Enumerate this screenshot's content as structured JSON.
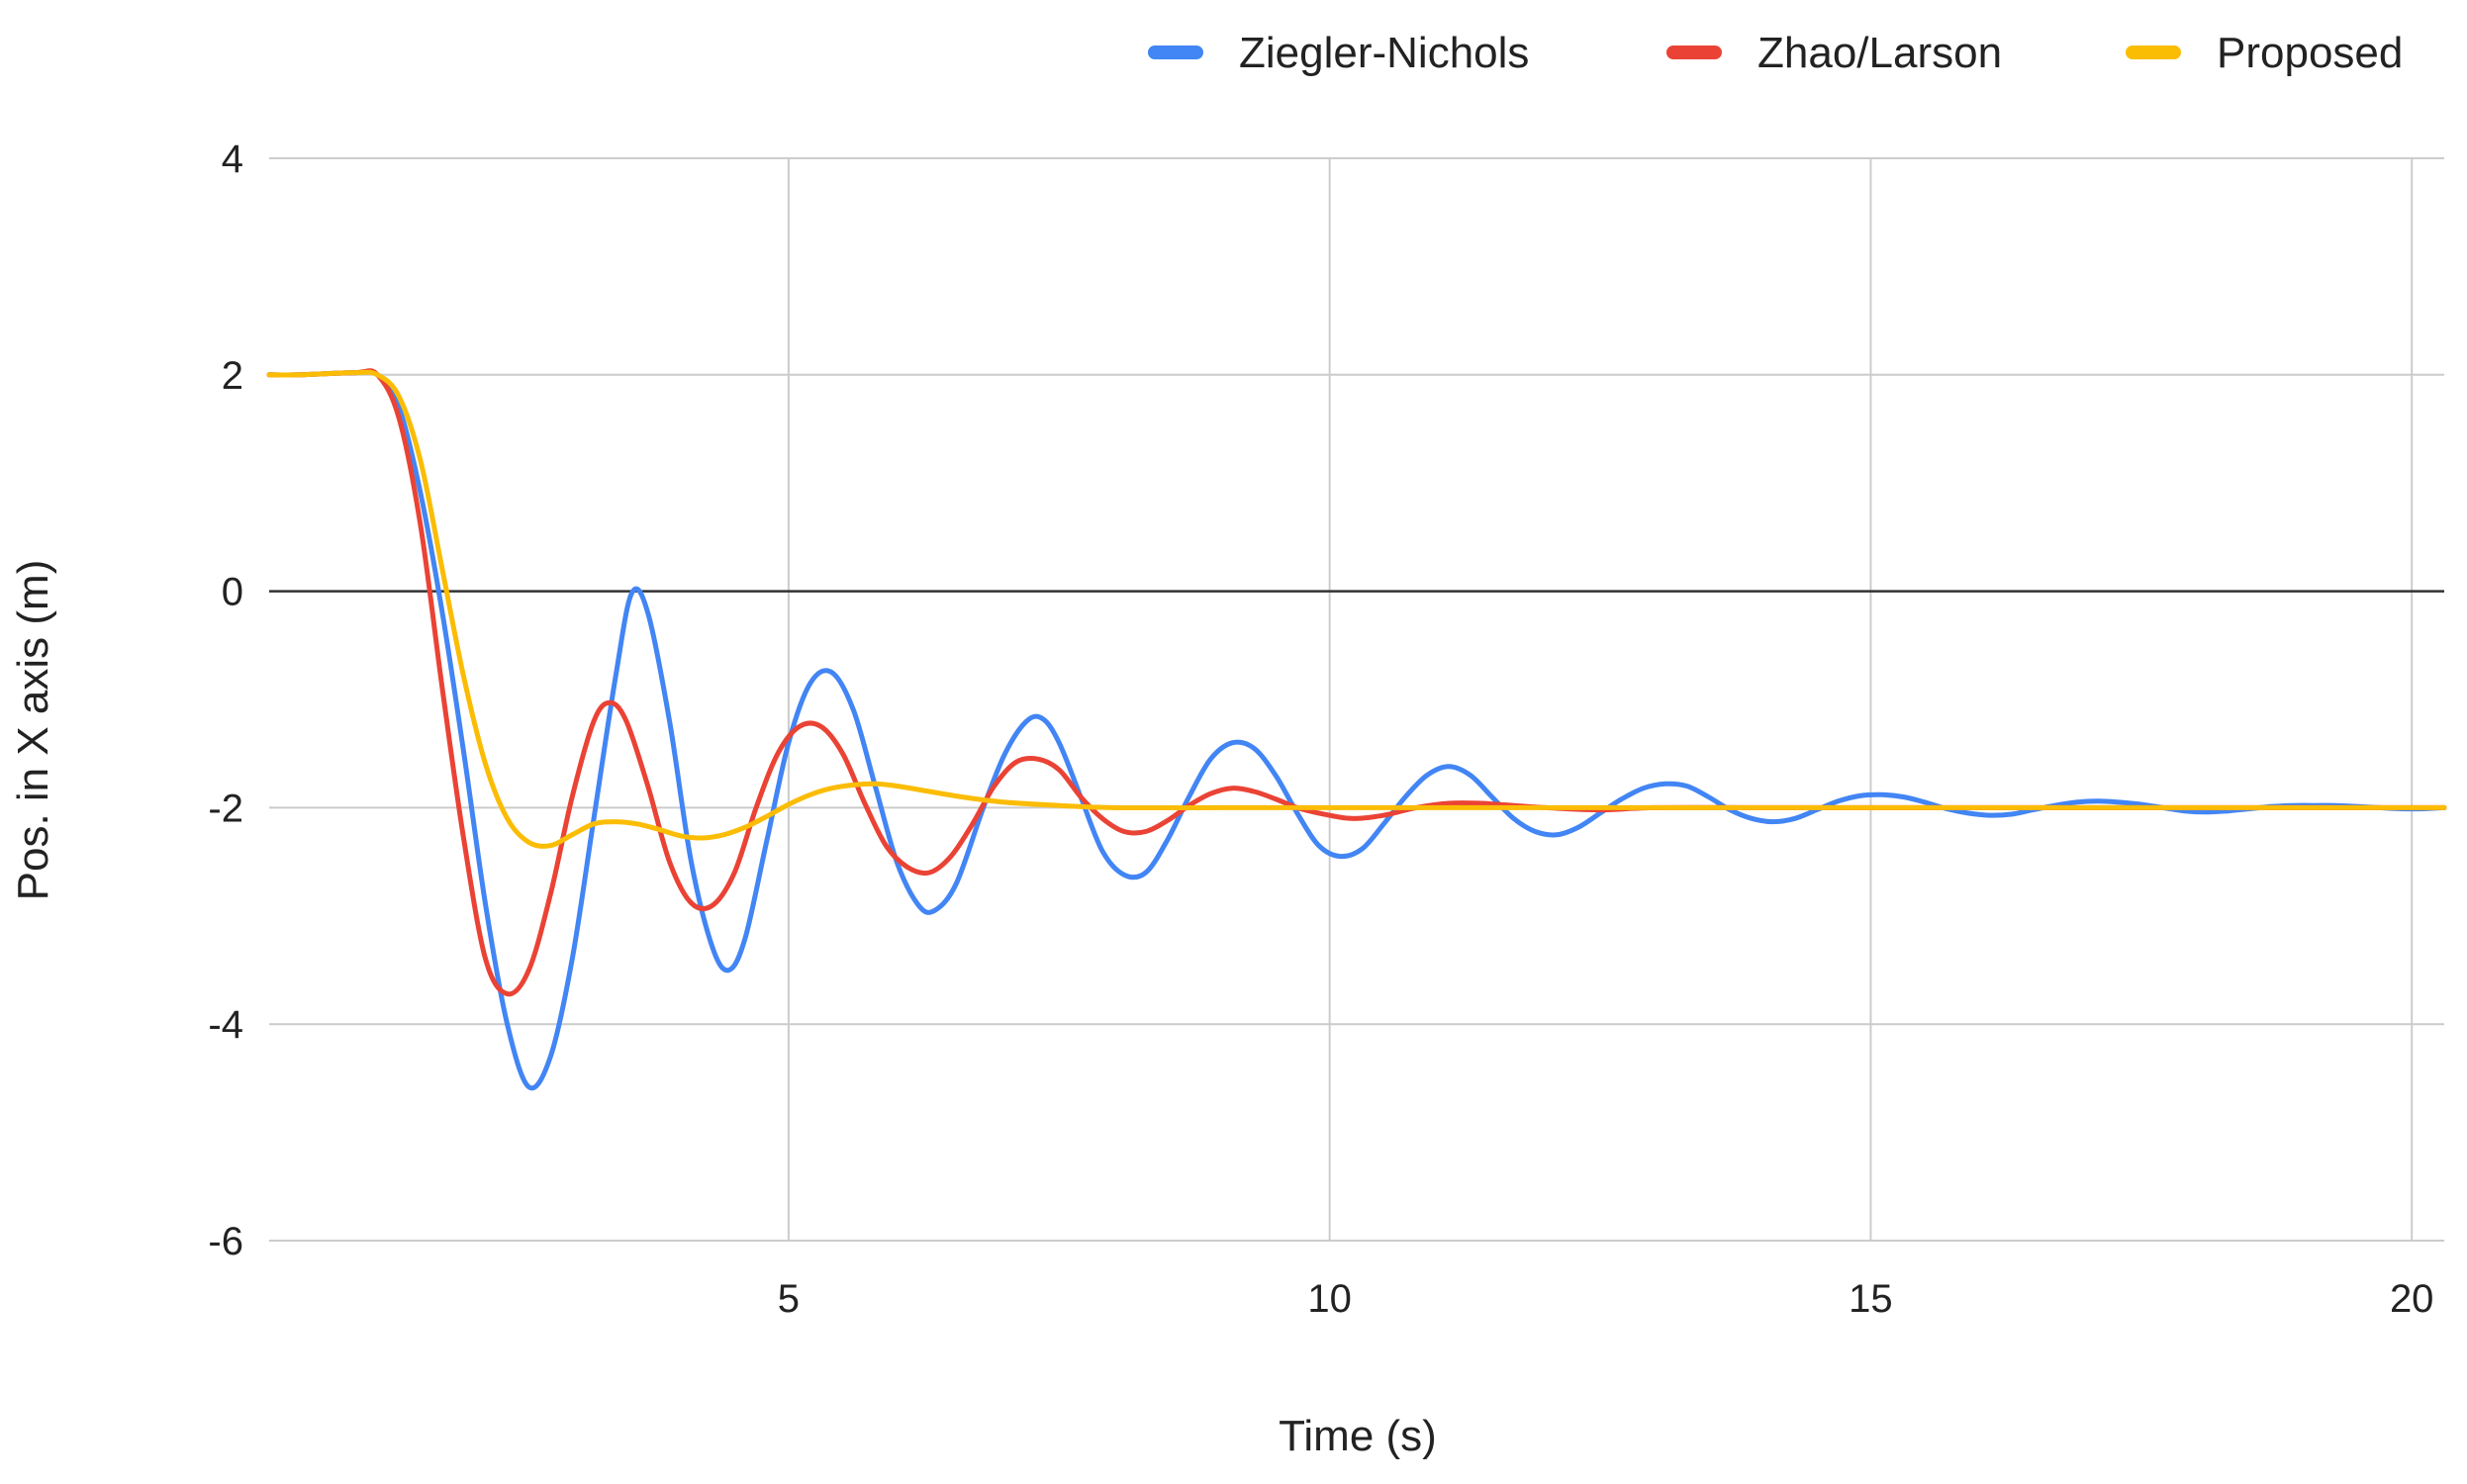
{
  "chart_data": {
    "type": "line",
    "title": "",
    "xlabel": "Time (s)",
    "ylabel": "Pos. in X axis (m)",
    "xlim": [
      0.2,
      20.3
    ],
    "ylim": [
      -6,
      4
    ],
    "x_ticks": [
      5,
      10,
      15,
      20
    ],
    "y_ticks": [
      4,
      2,
      0,
      -2,
      -4,
      -6
    ],
    "x_tick_labels": [
      "5",
      "10",
      "15",
      "20"
    ],
    "y_tick_labels": [
      "4",
      "2",
      "0",
      "-2",
      "-4",
      "-6"
    ],
    "grid": true,
    "zero_line": true,
    "legend_position": "top-right",
    "series": [
      {
        "name": "Ziegler-Nichols",
        "color": "#4285F4",
        "x": [
          0.2,
          0.5,
          1.0,
          1.2,
          1.4,
          1.6,
          1.8,
          2.0,
          2.2,
          2.4,
          2.6,
          2.8,
          3.0,
          3.2,
          3.4,
          3.55,
          3.7,
          3.9,
          4.1,
          4.3,
          4.45,
          4.6,
          4.8,
          5.0,
          5.2,
          5.4,
          5.6,
          5.8,
          6.0,
          6.2,
          6.35,
          6.55,
          6.8,
          7.0,
          7.2,
          7.35,
          7.5,
          7.7,
          7.9,
          8.1,
          8.3,
          8.5,
          8.7,
          8.9,
          9.1,
          9.3,
          9.5,
          9.7,
          9.9,
          10.1,
          10.3,
          10.5,
          10.7,
          10.9,
          11.1,
          11.3,
          11.5,
          11.7,
          11.9,
          12.1,
          12.3,
          12.5,
          12.7,
          12.9,
          13.1,
          13.3,
          13.5,
          13.7,
          13.9,
          14.1,
          14.3,
          14.5,
          14.7,
          14.9,
          15.1,
          15.3,
          15.5,
          15.7,
          15.9,
          16.1,
          16.3,
          16.5,
          16.7,
          16.9,
          17.1,
          17.3,
          17.5,
          17.7,
          17.9,
          18.1,
          18.3,
          18.5,
          18.7,
          18.9,
          19.1,
          19.3,
          19.5,
          19.7,
          19.9,
          20.1,
          20.3
        ],
        "values": [
          2.0,
          2.0,
          2.02,
          2.0,
          1.7,
          0.9,
          -0.2,
          -1.5,
          -2.9,
          -4.0,
          -4.58,
          -4.3,
          -3.4,
          -2.1,
          -0.8,
          -0.02,
          -0.2,
          -1.2,
          -2.5,
          -3.3,
          -3.5,
          -3.2,
          -2.3,
          -1.4,
          -0.85,
          -0.75,
          -1.1,
          -1.8,
          -2.5,
          -2.9,
          -2.95,
          -2.7,
          -2.0,
          -1.5,
          -1.2,
          -1.18,
          -1.4,
          -1.9,
          -2.4,
          -2.62,
          -2.6,
          -2.3,
          -1.9,
          -1.55,
          -1.4,
          -1.45,
          -1.7,
          -2.05,
          -2.35,
          -2.45,
          -2.38,
          -2.15,
          -1.9,
          -1.7,
          -1.62,
          -1.7,
          -1.9,
          -2.1,
          -2.22,
          -2.25,
          -2.18,
          -2.05,
          -1.92,
          -1.82,
          -1.78,
          -1.8,
          -1.9,
          -2.02,
          -2.1,
          -2.13,
          -2.1,
          -2.02,
          -1.94,
          -1.89,
          -1.88,
          -1.9,
          -1.95,
          -2.01,
          -2.05,
          -2.07,
          -2.06,
          -2.02,
          -1.98,
          -1.95,
          -1.94,
          -1.95,
          -1.97,
          -2.0,
          -2.03,
          -2.04,
          -2.03,
          -2.01,
          -1.99,
          -1.98,
          -1.98,
          -1.98,
          -1.99,
          -2.0,
          -2.01,
          -2.01,
          -2.0
        ]
      },
      {
        "name": "Zhao/Larson",
        "color": "#EA4335",
        "x": [
          0.2,
          0.5,
          1.0,
          1.2,
          1.4,
          1.6,
          1.8,
          2.0,
          2.2,
          2.4,
          2.6,
          2.8,
          3.0,
          3.2,
          3.35,
          3.5,
          3.7,
          3.9,
          4.1,
          4.3,
          4.5,
          4.7,
          4.9,
          5.1,
          5.3,
          5.5,
          5.7,
          5.9,
          6.1,
          6.3,
          6.5,
          6.7,
          6.9,
          7.1,
          7.3,
          7.5,
          7.7,
          7.9,
          8.1,
          8.3,
          8.5,
          8.7,
          8.9,
          9.1,
          9.3,
          9.5,
          9.7,
          9.9,
          10.2,
          10.5,
          10.8,
          11.1,
          11.4,
          11.7,
          12.0,
          12.5,
          13.0,
          14.0,
          15.0,
          16.0,
          17.0,
          18.0,
          19.0,
          20.3
        ],
        "values": [
          2.0,
          2.0,
          2.02,
          2.0,
          1.6,
          0.6,
          -0.9,
          -2.3,
          -3.4,
          -3.72,
          -3.5,
          -2.8,
          -1.9,
          -1.2,
          -1.03,
          -1.2,
          -1.8,
          -2.5,
          -2.88,
          -2.9,
          -2.6,
          -2.0,
          -1.5,
          -1.25,
          -1.25,
          -1.5,
          -1.95,
          -2.35,
          -2.55,
          -2.6,
          -2.45,
          -2.15,
          -1.8,
          -1.58,
          -1.55,
          -1.65,
          -1.9,
          -2.1,
          -2.22,
          -2.22,
          -2.12,
          -1.98,
          -1.87,
          -1.82,
          -1.85,
          -1.92,
          -2.0,
          -2.05,
          -2.1,
          -2.07,
          -2.0,
          -1.96,
          -1.96,
          -1.98,
          -2.0,
          -2.02,
          -2.0,
          -2.0,
          -2.0,
          -2.0,
          -2.0,
          -2.0,
          -2.0,
          -2.0
        ]
      },
      {
        "name": "Proposed",
        "color": "#FBBC04",
        "x": [
          0.2,
          0.5,
          1.0,
          1.2,
          1.4,
          1.6,
          1.8,
          2.0,
          2.2,
          2.4,
          2.6,
          2.8,
          3.0,
          3.2,
          3.4,
          3.6,
          3.8,
          4.0,
          4.2,
          4.4,
          4.6,
          4.8,
          5.0,
          5.2,
          5.4,
          5.6,
          5.8,
          6.0,
          6.3,
          6.6,
          7.0,
          7.5,
          8.0,
          9.0,
          10.0,
          12.0,
          14.0,
          16.0,
          18.0,
          20.3
        ],
        "values": [
          2.0,
          2.0,
          2.02,
          2.0,
          1.8,
          1.2,
          0.2,
          -0.8,
          -1.6,
          -2.1,
          -2.32,
          -2.35,
          -2.25,
          -2.15,
          -2.13,
          -2.15,
          -2.2,
          -2.26,
          -2.28,
          -2.25,
          -2.18,
          -2.08,
          -1.97,
          -1.88,
          -1.82,
          -1.79,
          -1.78,
          -1.8,
          -1.85,
          -1.9,
          -1.95,
          -1.98,
          -2.0,
          -2.0,
          -2.0,
          -2.0,
          -2.0,
          -2.0,
          -2.0,
          -2.0
        ]
      }
    ]
  }
}
